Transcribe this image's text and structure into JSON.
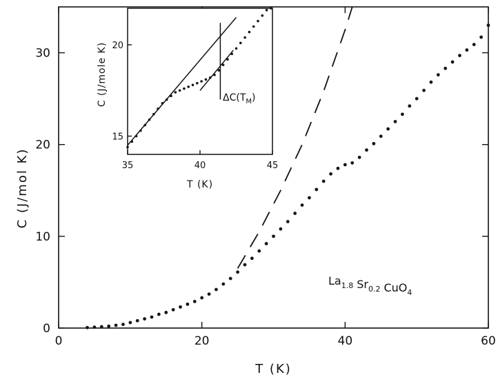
{
  "chart_data": [
    {
      "type": "scatter",
      "title": "",
      "xlabel": "T (K)",
      "ylabel": "C  (J/mol K)",
      "xlim": [
        0,
        60
      ],
      "ylim": [
        0,
        35
      ],
      "xticks": [
        "0",
        "20",
        "40",
        "60"
      ],
      "yticks": [
        "0",
        "10",
        "20",
        "30"
      ],
      "annotation": {
        "base": [
          "La",
          "Sr",
          "CuO"
        ],
        "subscripts": [
          "1.8",
          "0.2",
          "4"
        ]
      },
      "series": [
        {
          "style": "points",
          "points": [
            [
              4,
              0.05
            ],
            [
              5,
              0.1
            ],
            [
              6,
              0.15
            ],
            [
              7,
              0.2
            ],
            [
              8,
              0.3
            ],
            [
              9,
              0.4
            ],
            [
              10,
              0.6
            ],
            [
              11,
              0.8
            ],
            [
              12,
              1.0
            ],
            [
              13,
              1.2
            ],
            [
              14,
              1.5
            ],
            [
              15,
              1.7
            ],
            [
              16,
              2.0
            ],
            [
              17,
              2.3
            ],
            [
              18,
              2.6
            ],
            [
              19,
              2.9
            ],
            [
              20,
              3.3
            ],
            [
              21,
              3.7
            ],
            [
              22,
              4.2
            ],
            [
              23,
              4.8
            ],
            [
              24,
              5.4
            ],
            [
              25,
              6.1
            ],
            [
              26,
              6.9
            ],
            [
              27,
              7.6
            ],
            [
              28,
              8.4
            ],
            [
              29,
              9.2
            ],
            [
              30,
              10.0
            ],
            [
              31,
              10.8
            ],
            [
              32,
              11.6
            ],
            [
              33,
              12.5
            ],
            [
              34,
              13.4
            ],
            [
              35,
              14.2
            ],
            [
              36,
              15.1
            ],
            [
              37,
              16.0
            ],
            [
              38,
              16.8
            ],
            [
              39,
              17.4
            ],
            [
              40,
              17.8
            ],
            [
              41,
              18.0
            ],
            [
              42,
              18.6
            ],
            [
              43,
              19.4
            ],
            [
              44,
              20.1
            ],
            [
              45,
              20.9
            ],
            [
              46,
              21.7
            ],
            [
              47,
              22.5
            ],
            [
              48,
              23.3
            ],
            [
              49,
              24.2
            ],
            [
              50,
              25.0
            ],
            [
              51,
              25.9
            ],
            [
              52,
              26.8
            ],
            [
              53,
              27.6
            ],
            [
              54,
              28.3
            ],
            [
              55,
              29.0
            ],
            [
              56,
              29.7
            ],
            [
              57,
              30.3
            ],
            [
              58,
              30.9
            ],
            [
              59,
              31.7
            ],
            [
              60,
              33.0
            ]
          ]
        },
        {
          "style": "dashed",
          "points": [
            [
              25,
              6.5
            ],
            [
              28,
              10.5
            ],
            [
              31,
              15.0
            ],
            [
              34,
              20.0
            ],
            [
              37,
              25.8
            ],
            [
              40,
              32.5
            ],
            [
              41,
              35
            ]
          ]
        }
      ]
    },
    {
      "type": "scatter",
      "title": "",
      "xlabel": "T (K)",
      "ylabel": "C (J/mole K)",
      "xlim": [
        35,
        45
      ],
      "ylim": [
        14,
        22
      ],
      "xticks": [
        "35",
        "40",
        "45"
      ],
      "yticks": [
        "15",
        "20"
      ],
      "annotation": "ΔC(Tₘ)",
      "annotation_parts": [
        "ΔC(T",
        "M",
        ")"
      ],
      "series": [
        {
          "style": "points",
          "points": [
            [
              35.0,
              14.4
            ],
            [
              35.3,
              14.7
            ],
            [
              35.6,
              15.0
            ],
            [
              35.9,
              15.3
            ],
            [
              36.2,
              15.6
            ],
            [
              36.5,
              15.9
            ],
            [
              36.8,
              16.2
            ],
            [
              37.1,
              16.5
            ],
            [
              37.4,
              16.8
            ],
            [
              37.7,
              17.0
            ],
            [
              38.0,
              17.2
            ],
            [
              38.3,
              17.4
            ],
            [
              38.6,
              17.5
            ],
            [
              38.9,
              17.6
            ],
            [
              39.2,
              17.7
            ],
            [
              39.5,
              17.8
            ],
            [
              39.8,
              17.9
            ],
            [
              40.1,
              18.0
            ],
            [
              40.4,
              18.1
            ],
            [
              40.7,
              18.2
            ],
            [
              41.0,
              18.35
            ],
            [
              41.3,
              18.6
            ],
            [
              41.6,
              18.9
            ],
            [
              41.9,
              19.2
            ],
            [
              42.2,
              19.5
            ],
            [
              42.5,
              19.8
            ],
            [
              42.8,
              20.1
            ],
            [
              43.1,
              20.4
            ],
            [
              43.4,
              20.7
            ],
            [
              43.7,
              21.0
            ],
            [
              44.0,
              21.3
            ],
            [
              44.3,
              21.6
            ],
            [
              44.6,
              21.9
            ],
            [
              44.9,
              22.0
            ]
          ]
        },
        {
          "style": "line",
          "points": [
            [
              35,
              14.5
            ],
            [
              42.5,
              21.5
            ]
          ]
        },
        {
          "style": "line",
          "points": [
            [
              40.0,
              17.5
            ],
            [
              42.3,
              19.7
            ]
          ]
        },
        {
          "style": "line",
          "points": [
            [
              41.4,
              17.0
            ],
            [
              41.4,
              21.2
            ]
          ]
        }
      ]
    }
  ]
}
